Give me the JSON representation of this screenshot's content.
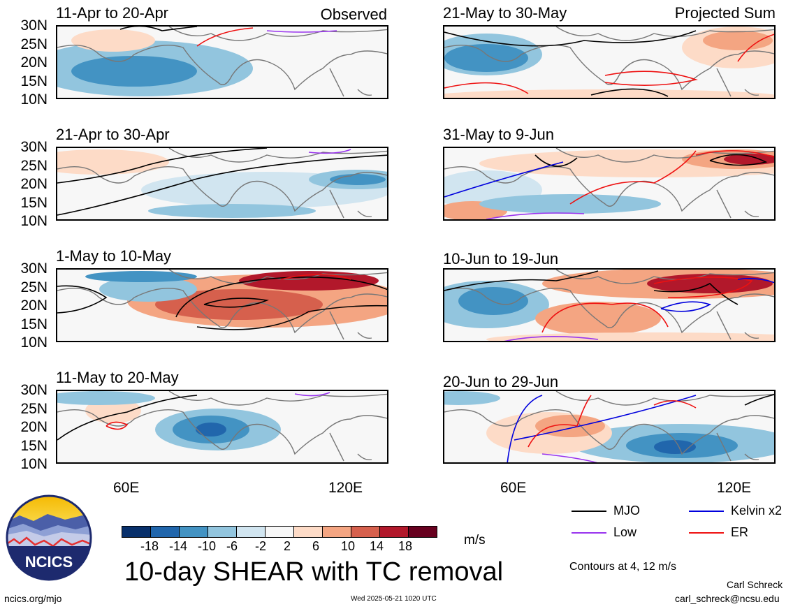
{
  "panels": [
    {
      "title": "11-Apr to 20-Apr",
      "right": "Observed"
    },
    {
      "title": "21-Apr to 30-Apr",
      "right": ""
    },
    {
      "title": "1-May to 10-May",
      "right": ""
    },
    {
      "title": "11-May to 20-May",
      "right": ""
    },
    {
      "title": "21-May to 30-May",
      "right": "Projected Sum"
    },
    {
      "title": "31-May to 9-Jun",
      "right": ""
    },
    {
      "title": "10-Jun to 19-Jun",
      "right": ""
    },
    {
      "title": "20-Jun to 29-Jun",
      "right": ""
    }
  ],
  "lat_labels": [
    "30N",
    "25N",
    "20N",
    "15N",
    "10N"
  ],
  "lon_labels": [
    "60E",
    "120E"
  ],
  "colorbar": {
    "colors": [
      "#08306b",
      "#2166ac",
      "#4393c3",
      "#92c5de",
      "#d1e5f0",
      "#f7f7f7",
      "#fddbc7",
      "#f4a582",
      "#d6604d",
      "#b2182b",
      "#67001f"
    ],
    "ticks": [
      "-18",
      "-14",
      "-10",
      "-6",
      "-2",
      "2",
      "6",
      "10",
      "14",
      "18"
    ],
    "unit": "m/s"
  },
  "legend": [
    {
      "label": "MJO",
      "color": "#000000"
    },
    {
      "label": "Kelvin x2",
      "color": "#0000dd"
    },
    {
      "label": "Low",
      "color": "#9933ee"
    },
    {
      "label": "ER",
      "color": "#ee1111"
    }
  ],
  "contours_note": "Contours at 4, 12 m/s",
  "main_title": "10-day SHEAR with TC removal",
  "logo_text": "NCICS",
  "footer_left": "ncics.org/mjo",
  "footer_center": "Wed 2025-05-21 1020 UTC",
  "author": "Carl Schreck",
  "email": "carl_schreck@ncsu.edu"
}
